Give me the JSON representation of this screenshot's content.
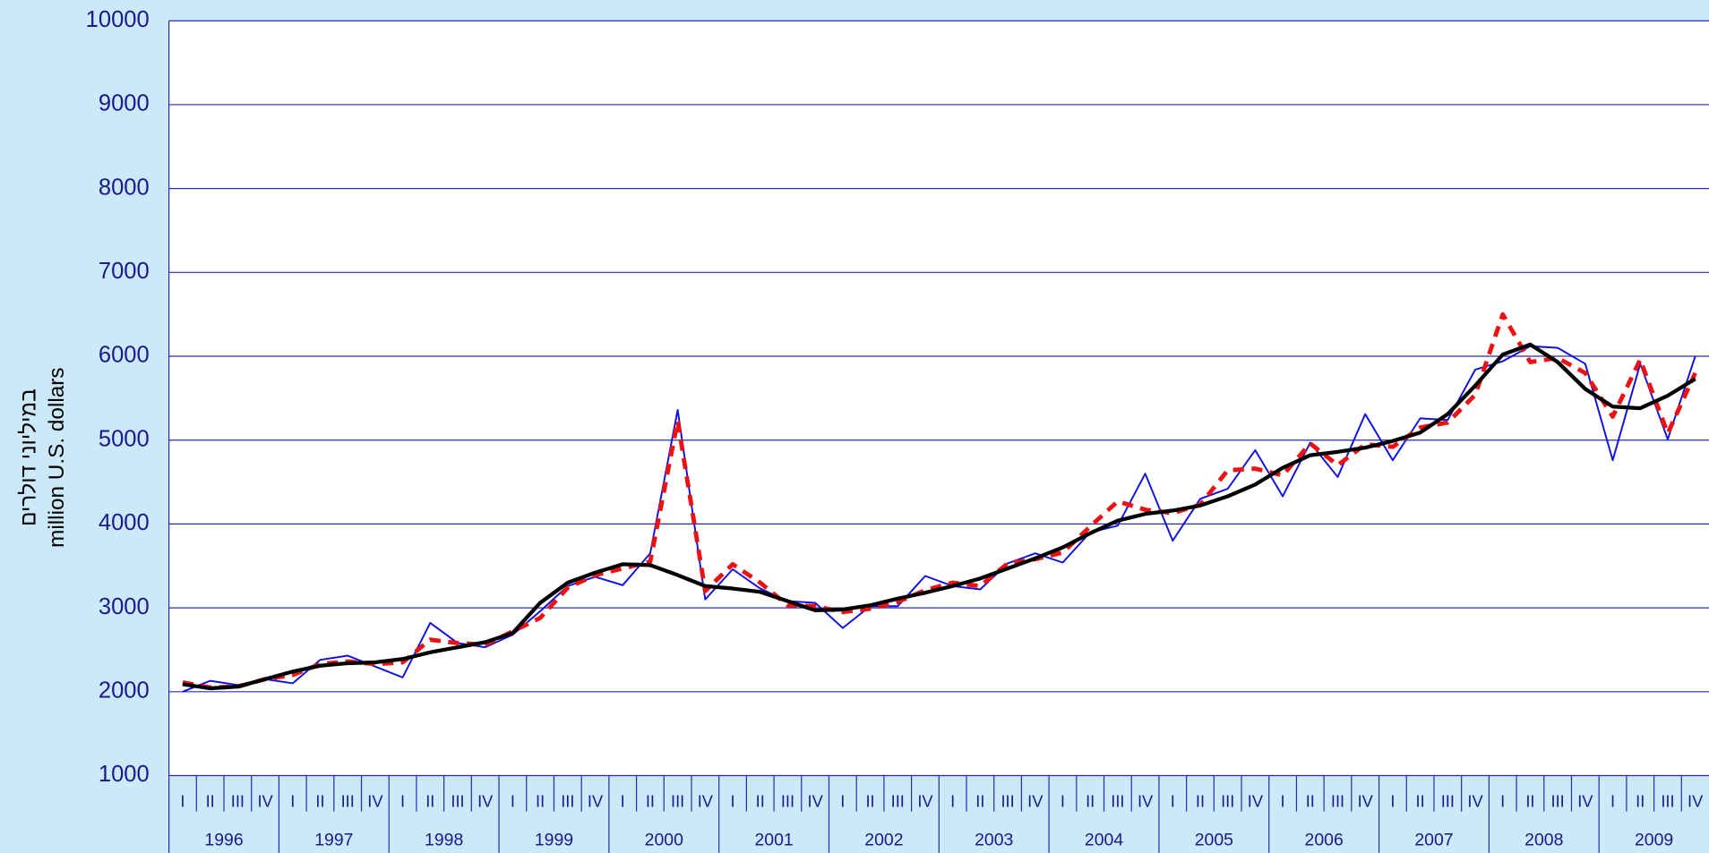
{
  "chart_data": {
    "type": "line",
    "ylabel": [
      "במיליוני דולרים",
      "million U.S. dollars"
    ],
    "categories": [
      "I",
      "II",
      "III",
      "IV",
      "I",
      "II",
      "III",
      "IV",
      "I",
      "II",
      "III",
      "IV",
      "I",
      "II",
      "III",
      "IV",
      "I",
      "II",
      "III",
      "IV",
      "I",
      "II",
      "III",
      "IV",
      "I",
      "II",
      "III",
      "IV",
      "I",
      "II",
      "III",
      "IV",
      "I",
      "II",
      "III",
      "IV",
      "I",
      "II",
      "III",
      "IV",
      "I",
      "II",
      "III",
      "IV",
      "I",
      "II",
      "III",
      "IV",
      "I",
      "II",
      "III",
      "IV",
      "I",
      "II",
      "III",
      "IV"
    ],
    "years": [
      "1996",
      "1997",
      "1998",
      "1999",
      "2000",
      "2001",
      "2002",
      "2003",
      "2004",
      "2005",
      "2006",
      "2007",
      "2008",
      "2009"
    ],
    "ylim": [
      1000,
      10000
    ],
    "yticks": [
      1000,
      2000,
      3000,
      4000,
      5000,
      6000,
      7000,
      8000,
      9000,
      10000
    ],
    "grid": true,
    "series": [
      {
        "color": "#1010e0",
        "style": "solid",
        "values": [
          2000,
          2130,
          2080,
          2150,
          2100,
          2380,
          2430,
          2300,
          2170,
          2820,
          2580,
          2530,
          2680,
          2960,
          3260,
          3370,
          3270,
          3650,
          5360,
          3100,
          3460,
          3230,
          3080,
          3060,
          2760,
          3020,
          3020,
          3380,
          3260,
          3220,
          3530,
          3650,
          3540,
          3900,
          3980,
          4600,
          3800,
          4300,
          4420,
          4880,
          4330,
          4970,
          4560,
          5310,
          4760,
          5260,
          5240,
          5840,
          5940,
          6120,
          6100,
          5910,
          4760,
          5910,
          5010,
          6000
        ]
      },
      {
        "color": "#ee1111",
        "style": "dashed",
        "values": [
          2110,
          2050,
          2060,
          2150,
          2200,
          2330,
          2360,
          2330,
          2350,
          2620,
          2580,
          2560,
          2720,
          2880,
          3240,
          3390,
          3470,
          3550,
          5230,
          3200,
          3520,
          3300,
          3030,
          3020,
          2950,
          2990,
          3070,
          3210,
          3300,
          3260,
          3530,
          3580,
          3660,
          3970,
          4270,
          4170,
          4130,
          4230,
          4640,
          4660,
          4580,
          4960,
          4700,
          4950,
          4920,
          5150,
          5210,
          5540,
          6500,
          5930,
          5980,
          5800,
          5280,
          5960,
          5080,
          5800
        ]
      },
      {
        "color": "#000000",
        "style": "thick",
        "values": [
          2090,
          2040,
          2060,
          2150,
          2240,
          2310,
          2340,
          2350,
          2390,
          2470,
          2530,
          2590,
          2700,
          3060,
          3300,
          3420,
          3520,
          3510,
          3390,
          3260,
          3230,
          3190,
          3080,
          2970,
          2980,
          3030,
          3110,
          3180,
          3260,
          3350,
          3470,
          3590,
          3720,
          3890,
          4040,
          4120,
          4160,
          4220,
          4330,
          4470,
          4670,
          4820,
          4860,
          4910,
          4990,
          5090,
          5310,
          5650,
          6020,
          6140,
          5930,
          5610,
          5400,
          5380,
          5530,
          5730
        ]
      }
    ]
  }
}
